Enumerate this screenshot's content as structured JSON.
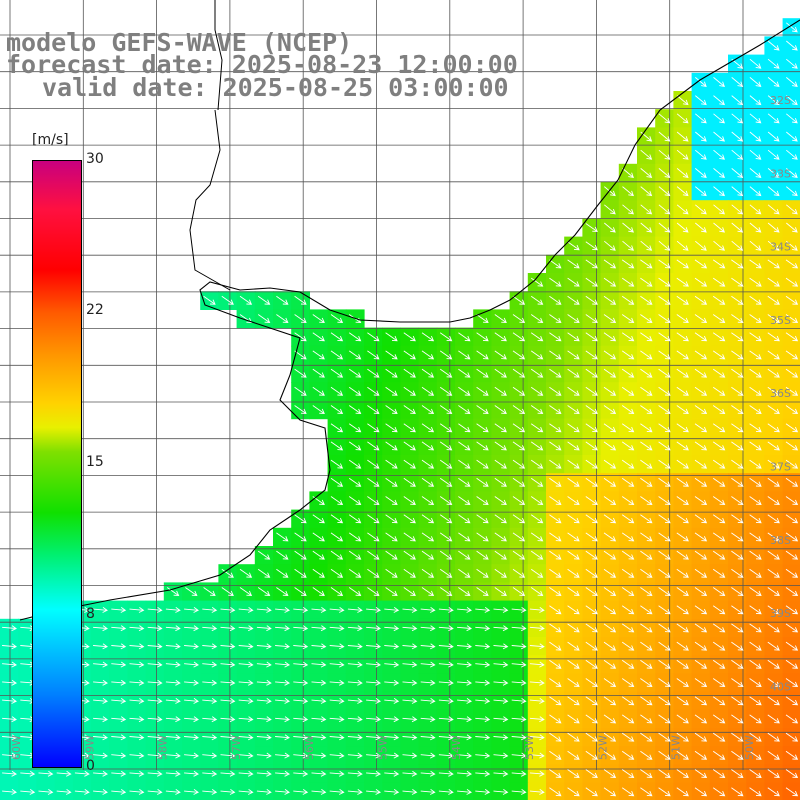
{
  "titles": {
    "line1": "modelo GEFS-WAVE (NCEP)",
    "line2": "forecast date: 2025-08-23 12:00:00",
    "line3": "valid date: 2025-08-25 03:00:00"
  },
  "colorbar": {
    "unit": "[m/s]",
    "ticks": [
      "30",
      "22",
      "15",
      "8",
      "0"
    ],
    "colors": [
      "#c8007f",
      "#ff0000",
      "#ff9600",
      "#ffd200",
      "#10e000",
      "#00ffff",
      "#0080ff",
      "#0000ff"
    ]
  },
  "lat_labels": [
    "32S",
    "33S",
    "34S",
    "35S",
    "36S",
    "37S",
    "38S",
    "39S",
    "40S"
  ],
  "lon_labels": [
    "60W",
    "59W",
    "58W",
    "57W",
    "56W",
    "55W",
    "54W",
    "53W",
    "52W",
    "51W",
    "50W"
  ],
  "map_extent": {
    "lon_min": -61.2,
    "lon_max": -50.4,
    "lat_min": -41.1,
    "lat_max": -30.3
  },
  "wind_field": {
    "variable": "wind speed",
    "unit": "m/s",
    "prevailing_direction": "from west-northwest",
    "speed_range": [
      8,
      22
    ]
  }
}
